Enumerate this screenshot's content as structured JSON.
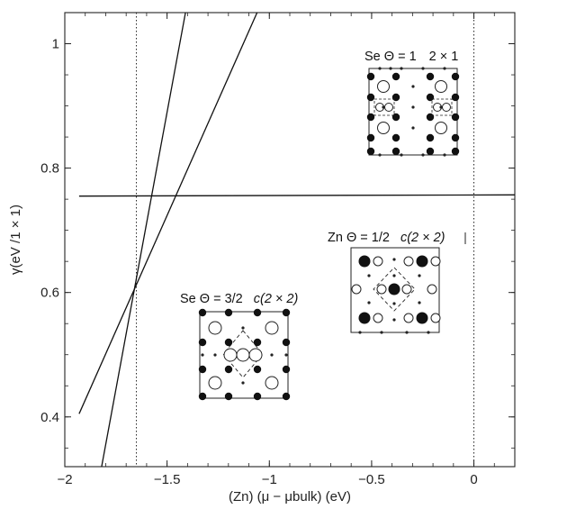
{
  "chart_data": {
    "type": "line",
    "title": "",
    "xlabel": "(Zn) (μ − μbulk) (eV)",
    "ylabel": "γ(eV /1 × 1)",
    "xlim": [
      -2.0,
      0.2
    ],
    "ylim": [
      0.32,
      1.05
    ],
    "xticks": [
      -2,
      -1.5,
      -1,
      -0.5,
      0
    ],
    "xtick_labels": [
      "−2",
      "−1.5",
      "−1",
      "−0.5",
      "0"
    ],
    "yticks": [
      0.4,
      0.6,
      0.8,
      1.0
    ],
    "ytick_labels": [
      "0.4",
      "0.6",
      "0.8",
      "1"
    ],
    "grid": false,
    "reference_lines_x": [
      -1.65,
      0.0
    ],
    "series": [
      {
        "x": [
          -1.93,
          -1.06
        ],
        "y": [
          0.405,
          1.05
        ]
      },
      {
        "x": [
          -1.82,
          -1.41
        ],
        "y": [
          0.32,
          1.05
        ]
      },
      {
        "x": [
          -1.93,
          0.2
        ],
        "y": [
          0.755,
          0.757
        ]
      }
    ],
    "annotations": [
      {
        "text_prefix": "Se Θ = 1",
        "text_cell": "2 × 1"
      },
      {
        "text_prefix": "Zn Θ = 1/2",
        "text_cell": "c(2 × 2)"
      },
      {
        "text_prefix": "Se Θ = 3/2",
        "text_cell": "c(2 × 2)"
      }
    ]
  }
}
